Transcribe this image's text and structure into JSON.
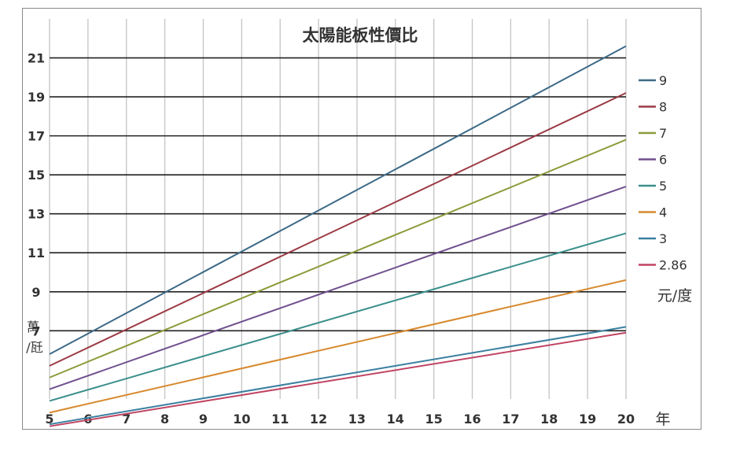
{
  "chart_data": {
    "type": "line",
    "title": "太陽能板性價比",
    "xlabel": "年",
    "ylabel_lines": [
      "萬",
      "/瓩"
    ],
    "legend_unit": "元/度",
    "legend_placement": "right",
    "xlim": [
      5,
      20
    ],
    "ylim": [
      3.5,
      23
    ],
    "x_ticks": [
      5,
      6,
      7,
      8,
      9,
      10,
      11,
      12,
      13,
      14,
      15,
      16,
      17,
      18,
      19,
      20
    ],
    "y_ticks": [
      7,
      9,
      11,
      13,
      15,
      17,
      19,
      21
    ],
    "grid": true,
    "series": [
      {
        "name": "9",
        "color": "#3d6a87",
        "x": [
          5,
          20
        ],
        "y": [
          5.8,
          21.6
        ]
      },
      {
        "name": "8",
        "color": "#9c3b45",
        "x": [
          5,
          20
        ],
        "y": [
          5.2,
          19.2
        ]
      },
      {
        "name": "7",
        "color": "#8e9a3a",
        "x": [
          5,
          20
        ],
        "y": [
          4.6,
          16.8
        ]
      },
      {
        "name": "6",
        "color": "#6f4f8f",
        "x": [
          5,
          20
        ],
        "y": [
          4.0,
          14.4
        ]
      },
      {
        "name": "5",
        "color": "#3a8f8c",
        "x": [
          5,
          20
        ],
        "y": [
          3.4,
          12.0
        ]
      },
      {
        "name": "4",
        "color": "#d7892c",
        "x": [
          5,
          20
        ],
        "y": [
          2.8,
          9.6
        ]
      },
      {
        "name": "3",
        "color": "#3a7fa0",
        "x": [
          5,
          20
        ],
        "y": [
          2.2,
          7.2
        ]
      },
      {
        "name": "2.86",
        "color": "#c04463",
        "x": [
          5,
          20
        ],
        "y": [
          2.1,
          6.9
        ]
      }
    ]
  }
}
